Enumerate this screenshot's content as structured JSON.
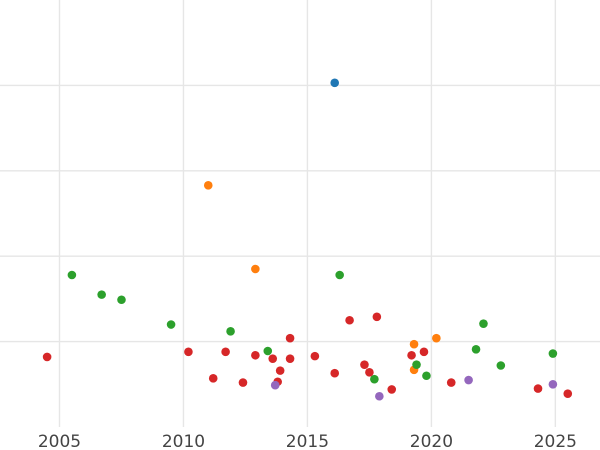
{
  "chart_data": {
    "type": "scatter",
    "title": "",
    "xlabel": "",
    "ylabel": "",
    "xlim": [
      2002.6,
      2026.8
    ],
    "ylim": [
      0,
      5
    ],
    "grid": true,
    "legend": "none",
    "x_ticks": [
      2005,
      2010,
      2015,
      2020,
      2025
    ],
    "x_tick_labels": [
      "2005",
      "2010",
      "2015",
      "2020",
      "2025"
    ],
    "y_gridlines": [
      1,
      2,
      3,
      4
    ],
    "series": [
      {
        "color": "#1f77b4",
        "points": [
          [
            2016.1,
            4.03
          ]
        ]
      },
      {
        "color": "#ff7f0e",
        "points": [
          [
            2011.0,
            2.83
          ],
          [
            2012.9,
            1.85
          ],
          [
            2019.3,
            0.97
          ],
          [
            2019.3,
            0.67
          ],
          [
            2020.2,
            1.04
          ]
        ]
      },
      {
        "color": "#2ca02c",
        "points": [
          [
            2005.5,
            1.78
          ],
          [
            2006.7,
            1.55
          ],
          [
            2007.5,
            1.49
          ],
          [
            2009.5,
            1.2
          ],
          [
            2011.9,
            1.12
          ],
          [
            2013.4,
            0.89
          ],
          [
            2016.3,
            1.78
          ],
          [
            2017.7,
            0.56
          ],
          [
            2019.4,
            0.73
          ],
          [
            2019.8,
            0.6
          ],
          [
            2021.8,
            0.91
          ],
          [
            2022.1,
            1.21
          ],
          [
            2022.8,
            0.72
          ],
          [
            2024.9,
            0.86
          ]
        ]
      },
      {
        "color": "#d62728",
        "points": [
          [
            2004.5,
            0.82
          ],
          [
            2010.2,
            0.88
          ],
          [
            2011.2,
            0.57
          ],
          [
            2011.7,
            0.88
          ],
          [
            2012.4,
            0.52
          ],
          [
            2012.9,
            0.84
          ],
          [
            2013.6,
            0.8
          ],
          [
            2013.8,
            0.53
          ],
          [
            2013.9,
            0.66
          ],
          [
            2014.3,
            1.04
          ],
          [
            2014.3,
            0.8
          ],
          [
            2015.3,
            0.83
          ],
          [
            2016.1,
            0.63
          ],
          [
            2016.7,
            1.25
          ],
          [
            2017.3,
            0.73
          ],
          [
            2017.5,
            0.64
          ],
          [
            2017.8,
            1.29
          ],
          [
            2018.4,
            0.44
          ],
          [
            2019.2,
            0.84
          ],
          [
            2019.7,
            0.88
          ],
          [
            2020.8,
            0.52
          ],
          [
            2024.3,
            0.45
          ],
          [
            2025.5,
            0.39
          ]
        ]
      },
      {
        "color": "#9467bd",
        "points": [
          [
            2013.7,
            0.49
          ],
          [
            2017.9,
            0.36
          ],
          [
            2021.5,
            0.55
          ],
          [
            2024.9,
            0.5
          ]
        ]
      }
    ]
  }
}
